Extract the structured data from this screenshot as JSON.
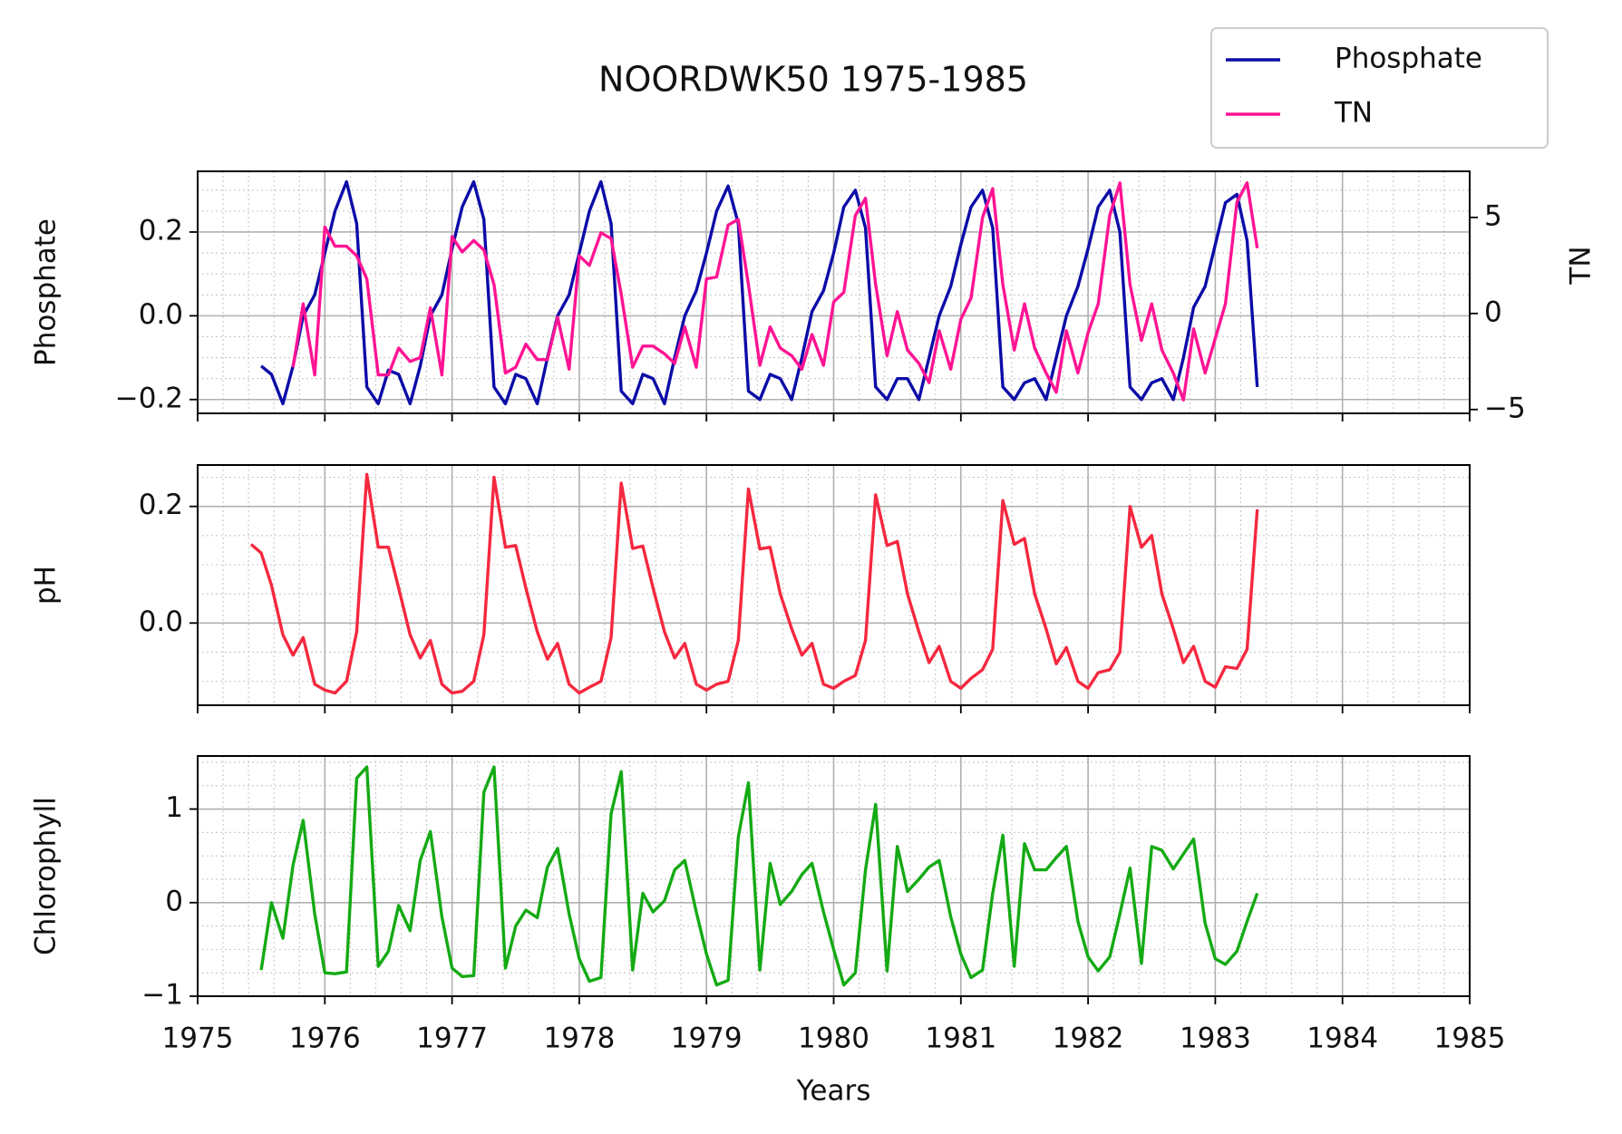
{
  "chart_data": [
    {
      "type": "line",
      "title": "NOORDWK50 1975-1985",
      "ylabel": "Phosphate",
      "y2label": "TN",
      "legend": "upper right outside",
      "grid": true,
      "x": [
        1975.5,
        1975.58,
        1975.67,
        1975.75,
        1975.83,
        1975.92,
        1976,
        1976.08,
        1976.17,
        1976.25,
        1976.33,
        1976.42,
        1976.5,
        1976.58,
        1976.67,
        1976.75,
        1976.83,
        1976.92,
        1977,
        1977.08,
        1977.17,
        1977.25,
        1977.33,
        1977.42,
        1977.5,
        1977.58,
        1977.67,
        1977.75,
        1977.83,
        1977.92,
        1978,
        1978.08,
        1978.17,
        1978.25,
        1978.33,
        1978.42,
        1978.5,
        1978.58,
        1978.67,
        1978.75,
        1978.83,
        1978.92,
        1979,
        1979.08,
        1979.17,
        1979.25,
        1979.33,
        1979.42,
        1979.5,
        1979.58,
        1979.67,
        1979.75,
        1979.83,
        1979.92,
        1980,
        1980.08,
        1980.17,
        1980.25,
        1980.33,
        1980.42,
        1980.5,
        1980.58,
        1980.67,
        1980.75,
        1980.83,
        1980.92,
        1981,
        1981.08,
        1981.17,
        1981.25,
        1981.33,
        1981.42,
        1981.5,
        1981.58,
        1981.67,
        1981.75,
        1981.83,
        1981.92,
        1982,
        1982.08,
        1982.17,
        1982.25,
        1982.33,
        1982.42,
        1982.5,
        1982.58,
        1982.67,
        1982.75,
        1982.83,
        1982.92,
        1983,
        1983.08,
        1983.17,
        1983.25,
        1983.33
      ],
      "series": [
        {
          "name": "Phosphate",
          "color": "#0c0ca8",
          "values": [
            -0.12,
            -0.14,
            -0.21,
            -0.12,
            0.0,
            0.05,
            0.15,
            0.25,
            0.32,
            0.22,
            -0.17,
            -0.21,
            -0.13,
            -0.14,
            -0.21,
            -0.12,
            0.0,
            0.05,
            0.16,
            0.26,
            0.32,
            0.23,
            -0.17,
            -0.21,
            -0.14,
            -0.15,
            -0.21,
            -0.1,
            0.0,
            0.05,
            0.15,
            0.25,
            0.32,
            0.22,
            -0.18,
            -0.21,
            -0.14,
            -0.15,
            -0.21,
            -0.1,
            0.0,
            0.06,
            0.15,
            0.25,
            0.31,
            0.22,
            -0.18,
            -0.2,
            -0.14,
            -0.15,
            -0.2,
            -0.1,
            0.01,
            0.06,
            0.15,
            0.26,
            0.3,
            0.21,
            -0.17,
            -0.2,
            -0.15,
            -0.15,
            -0.2,
            -0.1,
            0.0,
            0.07,
            0.17,
            0.26,
            0.3,
            0.21,
            -0.17,
            -0.2,
            -0.16,
            -0.15,
            -0.2,
            -0.1,
            0.0,
            0.07,
            0.16,
            0.26,
            0.3,
            0.2,
            -0.17,
            -0.2,
            -0.16,
            -0.15,
            -0.2,
            -0.1,
            0.02,
            0.07,
            0.17,
            0.27,
            0.29,
            0.18,
            -0.17
          ]
        },
        {
          "name": "TN",
          "color": "#ff1493",
          "axis": "y2",
          "values": [
            null,
            null,
            null,
            -2.8,
            0.5,
            -3.2,
            4.5,
            3.5,
            3.5,
            3.0,
            1.8,
            -3.2,
            -3.2,
            -1.8,
            -2.5,
            -2.3,
            0.3,
            -3.2,
            4.0,
            3.2,
            3.8,
            3.3,
            1.5,
            -3.1,
            -2.8,
            -1.6,
            -2.4,
            -2.4,
            -0.2,
            -2.9,
            3.0,
            2.5,
            4.2,
            3.9,
            1.0,
            -2.8,
            -1.7,
            -1.7,
            -2.1,
            -2.6,
            -0.7,
            -2.8,
            1.8,
            1.9,
            4.6,
            4.9,
            1.5,
            -2.7,
            -0.7,
            -1.8,
            -2.2,
            -2.9,
            -1.1,
            -2.7,
            0.6,
            1.1,
            5.1,
            6.0,
            1.5,
            -2.2,
            0.1,
            -1.9,
            -2.6,
            -3.6,
            -0.9,
            -2.9,
            -0.3,
            0.8,
            5.0,
            6.5,
            1.5,
            -1.9,
            0.5,
            -1.8,
            -3.1,
            -4.1,
            -0.9,
            -3.1,
            -1.0,
            0.5,
            5.1,
            6.8,
            1.5,
            -1.4,
            0.5,
            -1.9,
            -3.1,
            -4.5,
            -0.8,
            -3.1,
            -1.3,
            0.5,
            5.8,
            6.8,
            3.4
          ]
        }
      ],
      "xlim": [
        1975,
        1985
      ],
      "xticks": [
        1975,
        1976,
        1977,
        1978,
        1979,
        1980,
        1981,
        1982,
        1983,
        1984,
        1985
      ],
      "ylim": [
        -0.233,
        0.345
      ],
      "yticks": [
        {
          "value": -0.2,
          "label": "−0.2"
        },
        {
          "value": 0,
          "label": "0.0"
        },
        0.2
      ],
      "y2lim": [
        -5.2,
        7.4
      ],
      "y2ticks": [
        {
          "value": -5,
          "label": "−5"
        },
        0,
        5
      ]
    },
    {
      "type": "line",
      "ylabel": "pH",
      "grid": true,
      "x": [
        1975.42,
        1975.5,
        1975.58,
        1975.67,
        1975.75,
        1975.83,
        1975.92,
        1976,
        1976.08,
        1976.17,
        1976.25,
        1976.33,
        1976.42,
        1976.5,
        1976.58,
        1976.67,
        1976.75,
        1976.83,
        1976.92,
        1977,
        1977.08,
        1977.17,
        1977.25,
        1977.33,
        1977.42,
        1977.5,
        1977.58,
        1977.67,
        1977.75,
        1977.83,
        1977.92,
        1978,
        1978.08,
        1978.17,
        1978.25,
        1978.33,
        1978.42,
        1978.5,
        1978.58,
        1978.67,
        1978.75,
        1978.83,
        1978.92,
        1979,
        1979.08,
        1979.17,
        1979.25,
        1979.33,
        1979.42,
        1979.5,
        1979.58,
        1979.67,
        1979.75,
        1979.83,
        1979.92,
        1980,
        1980.08,
        1980.17,
        1980.25,
        1980.33,
        1980.42,
        1980.5,
        1980.58,
        1980.67,
        1980.75,
        1980.83,
        1980.92,
        1981,
        1981.08,
        1981.17,
        1981.25,
        1981.33,
        1981.42,
        1981.5,
        1981.58,
        1981.67,
        1981.75,
        1981.83,
        1981.92,
        1982,
        1982.08,
        1982.17,
        1982.25,
        1982.33,
        1982.42,
        1982.5,
        1982.58,
        1982.67,
        1982.75,
        1982.83,
        1982.92,
        1983,
        1983.08,
        1983.17,
        1983.25,
        1983.33
      ],
      "series": [
        {
          "name": "pH",
          "color": "#f5283f",
          "values": [
            0.135,
            0.12,
            0.065,
            -0.02,
            -0.055,
            -0.025,
            -0.105,
            -0.115,
            -0.12,
            -0.1,
            -0.015,
            0.255,
            0.13,
            0.13,
            0.06,
            -0.02,
            -0.06,
            -0.03,
            -0.105,
            -0.12,
            -0.117,
            -0.1,
            -0.02,
            0.25,
            0.13,
            0.133,
            0.06,
            -0.015,
            -0.062,
            -0.035,
            -0.105,
            -0.12,
            -0.11,
            -0.1,
            -0.025,
            0.24,
            0.128,
            0.132,
            0.06,
            -0.015,
            -0.06,
            -0.035,
            -0.105,
            -0.115,
            -0.105,
            -0.1,
            -0.03,
            0.23,
            0.127,
            0.13,
            0.05,
            -0.01,
            -0.055,
            -0.035,
            -0.105,
            -0.112,
            -0.1,
            -0.09,
            -0.03,
            0.22,
            0.133,
            0.14,
            0.05,
            -0.015,
            -0.068,
            -0.04,
            -0.1,
            -0.112,
            -0.095,
            -0.08,
            -0.045,
            0.21,
            0.135,
            0.145,
            0.05,
            -0.01,
            -0.07,
            -0.042,
            -0.1,
            -0.112,
            -0.085,
            -0.08,
            -0.05,
            0.2,
            0.13,
            0.15,
            0.05,
            -0.01,
            -0.068,
            -0.04,
            -0.1,
            -0.11,
            -0.075,
            -0.078,
            -0.045,
            0.195
          ]
        }
      ],
      "xlim": [
        1975,
        1985
      ],
      "xticks": [
        1975,
        1976,
        1977,
        1978,
        1979,
        1980,
        1981,
        1982,
        1983,
        1984,
        1985
      ],
      "ylim": [
        -0.141,
        0.271
      ],
      "yticks": [
        {
          "value": 0,
          "label": "0.0"
        },
        0.2
      ]
    },
    {
      "type": "line",
      "ylabel": "Chlorophyll",
      "xlabel": "Years",
      "grid": true,
      "show_xtick_labels": true,
      "x": [
        1975.5,
        1975.58,
        1975.67,
        1975.75,
        1975.83,
        1975.92,
        1976,
        1976.08,
        1976.17,
        1976.25,
        1976.33,
        1976.42,
        1976.5,
        1976.58,
        1976.67,
        1976.75,
        1976.83,
        1976.92,
        1977,
        1977.08,
        1977.17,
        1977.25,
        1977.33,
        1977.42,
        1977.5,
        1977.58,
        1977.67,
        1977.75,
        1977.83,
        1977.92,
        1978,
        1978.08,
        1978.17,
        1978.25,
        1978.33,
        1978.42,
        1978.5,
        1978.58,
        1978.67,
        1978.75,
        1978.83,
        1978.92,
        1979,
        1979.08,
        1979.17,
        1979.25,
        1979.33,
        1979.42,
        1979.5,
        1979.58,
        1979.67,
        1979.75,
        1979.83,
        1979.92,
        1980,
        1980.08,
        1980.17,
        1980.25,
        1980.33,
        1980.42,
        1980.5,
        1980.58,
        1980.67,
        1980.75,
        1980.83,
        1980.92,
        1981,
        1981.08,
        1981.17,
        1981.25,
        1981.33,
        1981.42,
        1981.5,
        1981.58,
        1981.67,
        1981.75,
        1981.83,
        1981.92,
        1982,
        1982.08,
        1982.17,
        1982.25,
        1982.33,
        1982.42,
        1982.5,
        1982.58,
        1982.67,
        1982.75,
        1982.83,
        1982.92,
        1983,
        1983.08,
        1983.17,
        1983.25,
        1983.33
      ],
      "series": [
        {
          "name": "Chlorophyll",
          "color": "#14aa14",
          "values": [
            -0.72,
            0.0,
            -0.38,
            0.4,
            0.88,
            -0.12,
            -0.75,
            -0.76,
            -0.74,
            1.33,
            1.45,
            -0.68,
            -0.52,
            -0.03,
            -0.3,
            0.45,
            0.76,
            -0.15,
            -0.7,
            -0.79,
            -0.78,
            1.18,
            1.45,
            -0.7,
            -0.25,
            -0.08,
            -0.16,
            0.38,
            0.58,
            -0.12,
            -0.6,
            -0.84,
            -0.8,
            0.95,
            1.4,
            -0.72,
            0.1,
            -0.1,
            0.02,
            0.35,
            0.45,
            -0.1,
            -0.55,
            -0.88,
            -0.83,
            0.7,
            1.28,
            -0.72,
            0.42,
            -0.02,
            0.12,
            0.3,
            0.42,
            -0.1,
            -0.5,
            -0.88,
            -0.75,
            0.35,
            1.05,
            -0.73,
            0.6,
            0.12,
            0.25,
            0.38,
            0.45,
            -0.15,
            -0.55,
            -0.8,
            -0.72,
            0.1,
            0.72,
            -0.68,
            0.63,
            0.35,
            0.35,
            0.48,
            0.6,
            -0.2,
            -0.58,
            -0.73,
            -0.58,
            -0.12,
            0.37,
            -0.65,
            0.6,
            0.56,
            0.36,
            0.52,
            0.68,
            -0.22,
            -0.6,
            -0.66,
            -0.52,
            -0.2,
            0.1
          ]
        }
      ],
      "xlim": [
        1975,
        1985
      ],
      "xticks": [
        1975,
        1976,
        1977,
        1978,
        1979,
        1980,
        1981,
        1982,
        1983,
        1984,
        1985
      ],
      "ylim": [
        -1,
        1.567
      ],
      "yticks": [
        {
          "value": -1,
          "label": "−1"
        },
        0,
        1
      ]
    }
  ]
}
